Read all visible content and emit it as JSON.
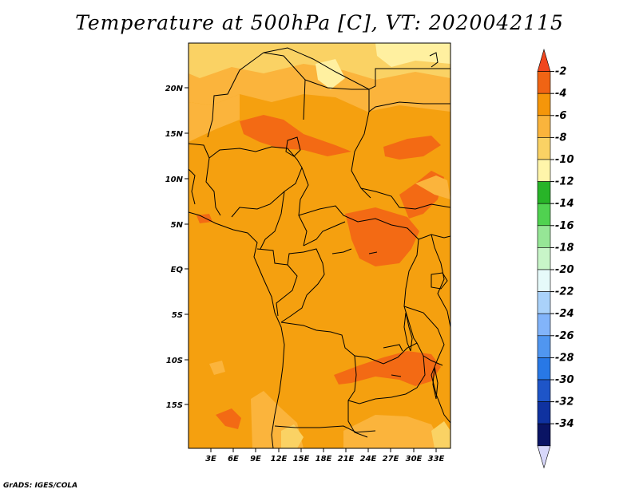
{
  "title": "Temperature at 500hPa [C], VT: 2020042115",
  "credit": "GrADS: IGES/COLA",
  "lat_ticks": [
    "20N",
    "15N",
    "10N",
    "5N",
    "EQ",
    "5S",
    "10S",
    "15S"
  ],
  "lon_ticks": [
    "3E",
    "6E",
    "9E",
    "12E",
    "15E",
    "18E",
    "21E",
    "24E",
    "27E",
    "30E",
    "33E"
  ],
  "colorbar": {
    "labels": [
      "-2",
      "-4",
      "-6",
      "-8",
      "-10",
      "-12",
      "-14",
      "-16",
      "-18",
      "-20",
      "-22",
      "-24",
      "-26",
      "-28",
      "-30",
      "-32",
      "-34"
    ],
    "colors": [
      "#f0461e",
      "#f06414",
      "#f5960a",
      "#fab43c",
      "#fad264",
      "#fff5aa",
      "#28b428",
      "#50d250",
      "#96e696",
      "#c8f5c8",
      "#e6fafa",
      "#aad2fa",
      "#82b4fa",
      "#5096f0",
      "#2878e6",
      "#1e55c8",
      "#0f32a0",
      "#0a1464",
      "#d7d7fa"
    ]
  }
}
